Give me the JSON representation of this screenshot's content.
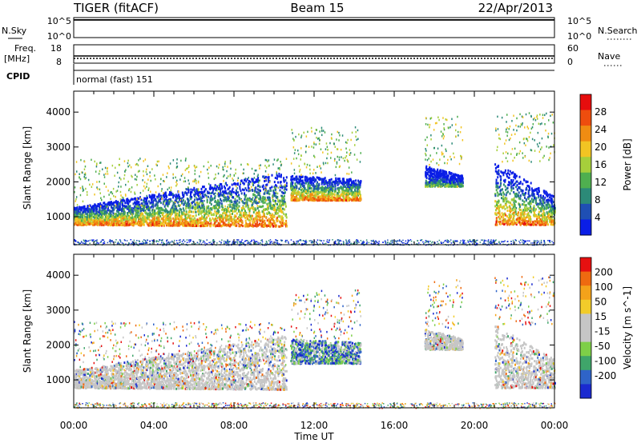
{
  "header": {
    "station": "TIGER (fitACF)",
    "beam": "Beam 15",
    "date": "22/Apr/2013"
  },
  "summary_panels": {
    "nsky": {
      "label": "N.Sky",
      "ticks": [
        "10^5",
        "10^0"
      ]
    },
    "nsearch": {
      "label": "N.Search",
      "ticks": [
        "10^5",
        "10^0"
      ]
    },
    "freq": {
      "label_line1": "Freq.",
      "label_line2": "[MHz]",
      "ticks": [
        "18",
        "8"
      ]
    },
    "nave": {
      "label": "Nave",
      "ticks": [
        "60",
        "0"
      ]
    },
    "cpid": {
      "label": "CPID",
      "value": "normal (fast) 151"
    }
  },
  "colors": {
    "power_scale": [
      "#0a1ee6",
      "#1f4fb4",
      "#2c8a78",
      "#4faf4f",
      "#a6cf3b",
      "#f2c423",
      "#f08c12",
      "#ee4d0e",
      "#e60d0d"
    ],
    "velocity_scale": [
      "#1a2ad0",
      "#2f64c8",
      "#3fa56a",
      "#7ecf48",
      "#c6c6c6",
      "#c6c6c6",
      "#f2cc2a",
      "#f4a21a",
      "#ee6a10",
      "#e61010"
    ]
  },
  "chart_data": [
    {
      "type": "heatmap",
      "name": "power-panel",
      "ylabel": "Slant Range [km]",
      "yticks": [
        "1000",
        "2000",
        "3000",
        "4000"
      ],
      "ylim": [
        200,
        4600
      ],
      "xlim": [
        0,
        24
      ],
      "xticks": [
        "00:00",
        "04:00",
        "08:00",
        "12:00",
        "16:00",
        "20:00",
        "00:00"
      ],
      "colorbar": {
        "label": "Power [dB]",
        "ticks": [
          "4",
          "8",
          "12",
          "16",
          "20",
          "24",
          "28"
        ],
        "range": [
          0,
          30
        ]
      },
      "regions": [
        {
          "t": [
            0,
            10.6
          ],
          "lower": [
            800,
            750
          ],
          "upper": [
            1300,
            2300
          ],
          "core_band": "orange-red"
        },
        {
          "t": [
            10.8,
            14.3
          ],
          "lower": [
            1500,
            1500
          ],
          "upper": [
            2200,
            2100
          ],
          "core_band": "red-blue"
        },
        {
          "t": [
            17.5,
            19.4
          ],
          "lower": [
            1900,
            1900
          ],
          "upper": [
            2500,
            2200
          ],
          "core_band": "green"
        },
        {
          "t": [
            21.0,
            24
          ],
          "lower": [
            800,
            800
          ],
          "upper": [
            2600,
            1600
          ],
          "core_band": "orange-red"
        }
      ]
    },
    {
      "type": "heatmap",
      "name": "velocity-panel",
      "ylabel": "Slant Range [km]",
      "yticks": [
        "1000",
        "2000",
        "3000",
        "4000"
      ],
      "ylim": [
        200,
        4600
      ],
      "xlim": [
        0,
        24
      ],
      "xticks": [
        "00:00",
        "04:00",
        "08:00",
        "12:00",
        "16:00",
        "20:00",
        "00:00"
      ],
      "xlabel": "Time UT",
      "colorbar": {
        "label": "Velocity [m s^-1]",
        "ticks": [
          "200",
          "100",
          "50",
          "15",
          "-15",
          "-50",
          "-100",
          "-200"
        ],
        "range": [
          -250,
          250
        ]
      },
      "regions": [
        {
          "t": [
            0,
            10.6
          ],
          "lower": [
            800,
            750
          ],
          "upper": [
            1300,
            2300
          ],
          "core_band": "grey"
        },
        {
          "t": [
            10.8,
            14.3
          ],
          "lower": [
            1500,
            1500
          ],
          "upper": [
            2200,
            2100
          ],
          "core_band": "green-blue"
        },
        {
          "t": [
            17.5,
            19.4
          ],
          "lower": [
            1900,
            1900
          ],
          "upper": [
            2500,
            2200
          ],
          "core_band": "grey"
        },
        {
          "t": [
            21.0,
            24
          ],
          "lower": [
            800,
            800
          ],
          "upper": [
            2600,
            1600
          ],
          "core_band": "grey"
        }
      ]
    }
  ],
  "xlabel": "Time UT"
}
